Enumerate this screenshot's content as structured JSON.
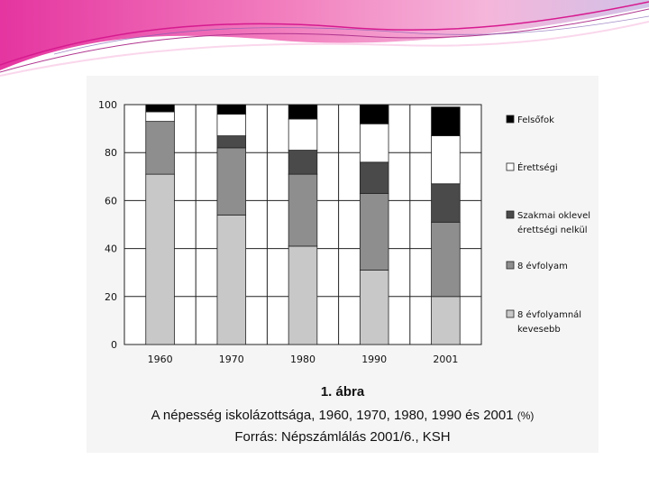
{
  "slide": {
    "banner_colors": [
      "#e0118f",
      "#f06ab4",
      "#f3a9d4",
      "#f9d3ea",
      "#c9b6e3"
    ]
  },
  "caption": {
    "number": "1. ábra",
    "title": "A népesség iskolázottsága, 1960, 1970, 1980, 1990 és 2001",
    "title_unit": "(%)",
    "source": "Forrás: Népszámlálás 2001/6., KSH"
  },
  "chart_data": {
    "type": "bar",
    "stacked": true,
    "categories": [
      "1960",
      "1970",
      "1980",
      "1990",
      "2001"
    ],
    "ylim": [
      0,
      100
    ],
    "yticks": [
      "0",
      "20",
      "40",
      "60",
      "80",
      "100"
    ],
    "grid": true,
    "legend_position": "right",
    "series": [
      {
        "name": "8 évfolyamnál kevesebb",
        "color": "#c8c8c8",
        "values": [
          71,
          54,
          41,
          31,
          20
        ]
      },
      {
        "name": "8 évfolyam",
        "color": "#8e8e8e",
        "values": [
          22,
          28,
          30,
          32,
          31
        ]
      },
      {
        "name": "Szakmai oklevel érettségi nelkül",
        "color": "#4a4a4a",
        "values": [
          0,
          5,
          10,
          13,
          16
        ]
      },
      {
        "name": "Érettségi",
        "color": "#ffffff",
        "values": [
          4,
          9,
          13,
          16,
          20
        ]
      },
      {
        "name": "Felsőfok",
        "color": "#000000",
        "values": [
          3,
          4,
          6,
          8,
          12
        ]
      }
    ]
  }
}
